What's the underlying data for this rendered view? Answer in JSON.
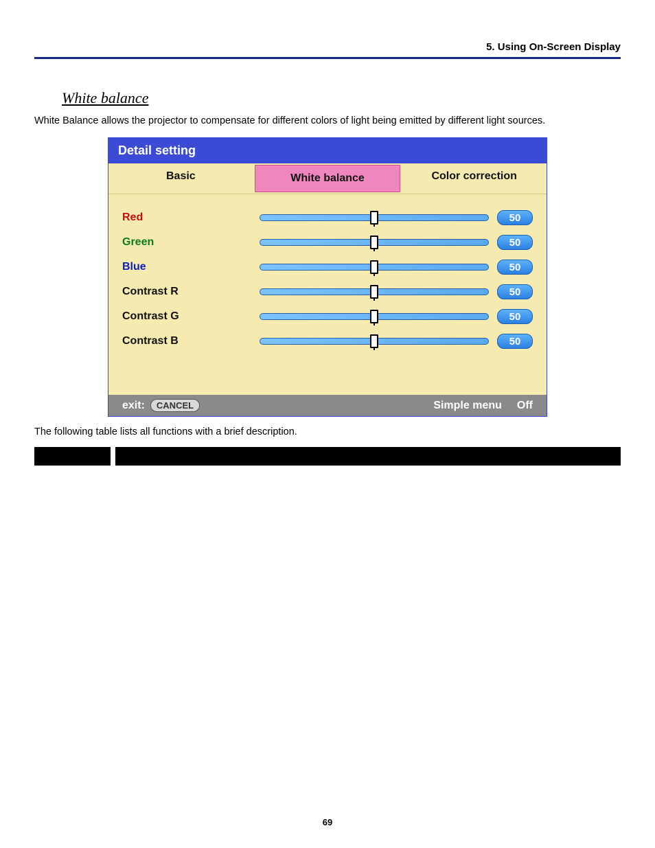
{
  "header": {
    "chapter": "5. Using On-Screen Display"
  },
  "section": {
    "title": "White balance",
    "intro": "White Balance allows the projector to compensate for different colors of light being emitted by different light sources.",
    "post_text": "The following table lists all functions with a brief description."
  },
  "osd": {
    "title": "Detail setting",
    "tabs": [
      "Basic",
      "White balance",
      "Color correction"
    ],
    "active_tab_index": 1,
    "sliders": [
      {
        "label": "Red",
        "value": 50,
        "min": 0,
        "max": 100,
        "label_color": "#c60e0e"
      },
      {
        "label": "Green",
        "value": 50,
        "min": 0,
        "max": 100,
        "label_color": "#0a7b1e"
      },
      {
        "label": "Blue",
        "value": 50,
        "min": 0,
        "max": 100,
        "label_color": "#0b1dbb"
      },
      {
        "label": "Contrast R",
        "value": 50,
        "min": 0,
        "max": 100,
        "label_color": "#111111"
      },
      {
        "label": "Contrast G",
        "value": 50,
        "min": 0,
        "max": 100,
        "label_color": "#111111"
      },
      {
        "label": "Contrast B",
        "value": 50,
        "min": 0,
        "max": 100,
        "label_color": "#111111"
      }
    ],
    "footer": {
      "exit_label": "exit:",
      "exit_button": "CANCEL",
      "simple_menu_label": "Simple menu",
      "simple_menu_value": "Off"
    },
    "styling": {
      "title_bg": "#3b4bd6",
      "title_fg": "#ffffff",
      "body_bg": "#f5ebb0",
      "active_tab_bg": "#ef87be",
      "slider_track_from": "#7cc3ff",
      "slider_track_to": "#5aa9ef",
      "slider_border": "#2a5da8",
      "value_pill_from": "#5db2ff",
      "value_pill_to": "#2d7fe0",
      "footer_bg": "#8a8a8a"
    }
  },
  "page_number": "69"
}
